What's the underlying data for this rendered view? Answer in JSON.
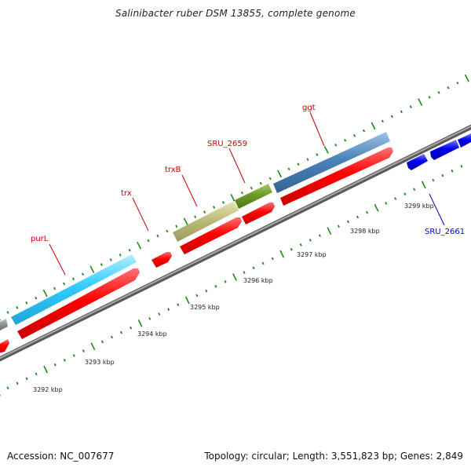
{
  "title": "Salinibacter ruber DSM 13855, complete genome",
  "footer": {
    "accession": "Accession: NC_007677",
    "topology": "Topology: circular; Length: 3,551,823 bp; Genes: 2,849"
  },
  "colors": {
    "background": "#ffffff",
    "backbone": "#8c8c8c",
    "tick": "#1a8a1a",
    "cds": "#ff0000",
    "gene_purL": "#33ccff",
    "gene_trxB": "#bdbd7a",
    "gene_SRU_2659": "#6b9a26",
    "gene_ggt": "#4a82b8",
    "reverse_gene": "#0000ee",
    "forward_label": "#cc0000",
    "reverse_label": "#0000cc"
  },
  "kbp_labels": [
    "3292 kbp",
    "3293 kbp",
    "3294 kbp",
    "3295 kbp",
    "3296 kbp",
    "3297 kbp",
    "3298 kbp",
    "3299 kbp"
  ],
  "forward_genes": [
    {
      "name": "purL",
      "color_key": "gene_purL"
    },
    {
      "name": "trx",
      "color_key": "gene_trxB"
    },
    {
      "name": "trxB",
      "color_key": "gene_trxB"
    },
    {
      "name": "SRU_2659",
      "color_key": "gene_SRU_2659"
    },
    {
      "name": "ggt",
      "color_key": "gene_ggt"
    }
  ],
  "reverse_genes": [
    {
      "name": "SRU_2661",
      "color_key": "reverse_gene"
    }
  ]
}
